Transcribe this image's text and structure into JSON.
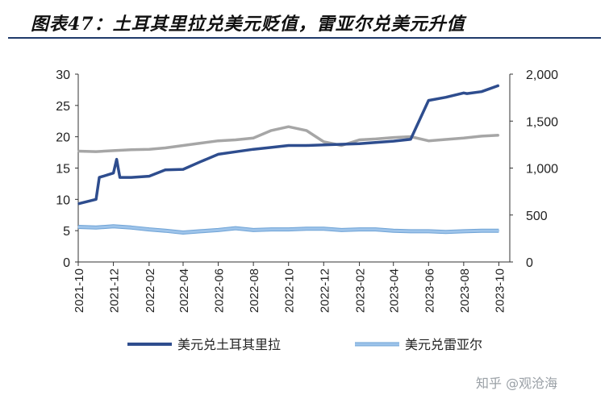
{
  "title": "图表47：土耳其里拉兑美元贬值，雷亚尔兑美元升值",
  "watermark": "知乎 @观沧海",
  "chart_data": {
    "type": "line",
    "title": "图表47：土耳其里拉兑美元贬值，雷亚尔兑美元升值",
    "x_labels": [
      "2021-10",
      "2021-12",
      "2022-02",
      "2022-04",
      "2022-06",
      "2022-08",
      "2022-10",
      "2022-12",
      "2023-02",
      "2023-04",
      "2023-06",
      "2023-08",
      "2023-10"
    ],
    "left_axis": {
      "ylim": [
        0,
        30
      ],
      "ticks": [
        "0",
        "5",
        "10",
        "15",
        "20",
        "25",
        "30"
      ]
    },
    "right_axis": {
      "ylim": [
        0,
        2000
      ],
      "ticks": [
        "0",
        "500",
        "1,000",
        "1,500",
        "2,000"
      ]
    },
    "grid": false,
    "legend_placement": "bottom",
    "series": [
      {
        "name": "美元兑土耳其里拉",
        "axis": "left",
        "color": "#2e4d8e",
        "x": [
          "2021-10",
          "2021-11",
          "2021-11",
          "2021-12",
          "2021-12",
          "2021-12",
          "2022-01",
          "2022-02",
          "2022-03",
          "2022-04",
          "2022-05",
          "2022-06",
          "2022-07",
          "2022-08",
          "2022-09",
          "2022-10",
          "2022-11",
          "2022-12",
          "2023-01",
          "2023-02",
          "2023-03",
          "2023-04",
          "2023-05",
          "2023-06",
          "2023-07",
          "2023-08",
          "2023-08",
          "2023-09",
          "2023-10"
        ],
        "values": [
          9.3,
          10.0,
          13.5,
          14.2,
          16.4,
          13.5,
          13.5,
          13.7,
          14.7,
          14.8,
          16.0,
          17.2,
          17.6,
          18.0,
          18.3,
          18.6,
          18.6,
          18.7,
          18.8,
          18.9,
          19.1,
          19.3,
          19.6,
          25.8,
          26.3,
          27.0,
          26.9,
          27.2,
          28.2
        ]
      },
      {
        "name": "美元兑雷亚尔",
        "axis": "left",
        "color": "#9ec4ea",
        "x": [
          "2021-10",
          "2021-11",
          "2021-12",
          "2022-01",
          "2022-02",
          "2022-03",
          "2022-04",
          "2022-05",
          "2022-06",
          "2022-07",
          "2022-08",
          "2022-09",
          "2022-10",
          "2022-11",
          "2022-12",
          "2023-01",
          "2023-02",
          "2023-03",
          "2023-04",
          "2023-05",
          "2023-06",
          "2023-07",
          "2023-08",
          "2023-09",
          "2023-10"
        ],
        "values": [
          5.6,
          5.5,
          5.7,
          5.5,
          5.2,
          5.0,
          4.7,
          4.9,
          5.1,
          5.4,
          5.1,
          5.2,
          5.2,
          5.3,
          5.3,
          5.1,
          5.2,
          5.2,
          5.0,
          4.9,
          4.9,
          4.8,
          4.9,
          5.0,
          5.0
        ]
      },
      {
        "name": "",
        "axis": "right",
        "color": "#a6a6a6",
        "x": [
          "2021-10",
          "2021-11",
          "2021-12",
          "2022-01",
          "2022-02",
          "2022-03",
          "2022-04",
          "2022-05",
          "2022-06",
          "2022-07",
          "2022-08",
          "2022-09",
          "2022-10",
          "2022-11",
          "2022-12",
          "2023-01",
          "2023-02",
          "2023-03",
          "2023-04",
          "2023-05",
          "2023-06",
          "2023-07",
          "2023-08",
          "2023-09",
          "2023-10"
        ],
        "values": [
          1180,
          1175,
          1185,
          1195,
          1200,
          1215,
          1240,
          1265,
          1290,
          1300,
          1320,
          1400,
          1440,
          1400,
          1280,
          1240,
          1300,
          1310,
          1325,
          1335,
          1290,
          1305,
          1320,
          1340,
          1350
        ]
      }
    ]
  }
}
